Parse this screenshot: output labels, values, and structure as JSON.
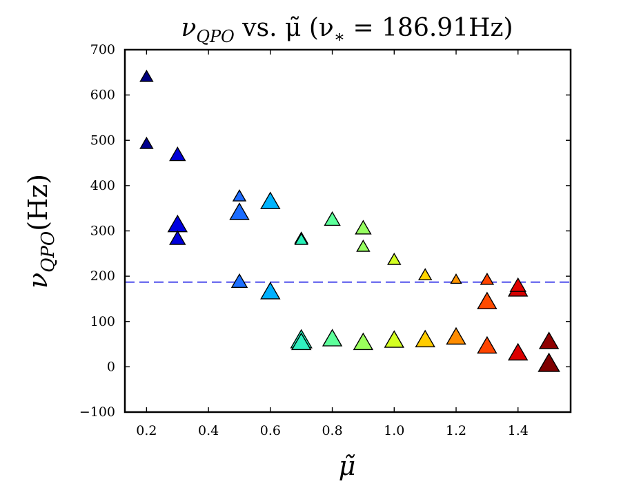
{
  "chart_data": {
    "type": "scatter",
    "marker": "triangle",
    "title": {
      "main": "ν",
      "sub": "QPO",
      "middle": " vs. μ̃ (ν",
      "star": "∗",
      "tail": " = 186.91Hz)"
    },
    "xlabel": "μ̃",
    "ylabel": {
      "main": "ν",
      "sub": "QPO",
      "unit": "(Hz)"
    },
    "xlim": [
      0.13,
      1.57
    ],
    "ylim": [
      -100,
      700
    ],
    "xticks": [
      0.2,
      0.4,
      0.6,
      0.8,
      1.0,
      1.2,
      1.4
    ],
    "xtick_labels": [
      "0.2",
      "0.4",
      "0.6",
      "0.8",
      "1.0",
      "1.2",
      "1.4"
    ],
    "yticks": [
      -100,
      0,
      100,
      200,
      300,
      400,
      500,
      600,
      700
    ],
    "ytick_labels": [
      "−100",
      "0",
      "100",
      "200",
      "300",
      "400",
      "500",
      "600",
      "700"
    ],
    "reference_line": {
      "y": 186.91,
      "style": "dashed",
      "color": "#1a1ae6"
    },
    "points": [
      {
        "x": 0.2,
        "y": 638,
        "size": "small",
        "color": "#00007f"
      },
      {
        "x": 0.2,
        "y": 490,
        "size": "small",
        "color": "#00008f"
      },
      {
        "x": 0.3,
        "y": 465,
        "size": "medium",
        "color": "#0000d6"
      },
      {
        "x": 0.3,
        "y": 310,
        "size": "large",
        "color": "#0000e0"
      },
      {
        "x": 0.3,
        "y": 280,
        "size": "medium",
        "color": "#0000dc"
      },
      {
        "x": 0.5,
        "y": 374,
        "size": "small",
        "color": "#1e6cff"
      },
      {
        "x": 0.5,
        "y": 337,
        "size": "large",
        "color": "#1a6cff"
      },
      {
        "x": 0.5,
        "y": 185,
        "size": "medium",
        "color": "#1e70ff"
      },
      {
        "x": 0.6,
        "y": 361,
        "size": "large",
        "color": "#00b4ff"
      },
      {
        "x": 0.6,
        "y": 162,
        "size": "large",
        "color": "#00b0ff"
      },
      {
        "x": 0.7,
        "y": 281,
        "size": "small",
        "color": "#1fe6b8"
      },
      {
        "x": 0.7,
        "y": 278,
        "size": "small",
        "color": "#28f0b8"
      },
      {
        "x": 0.7,
        "y": 55,
        "size": "xlarge",
        "color": "#29ffc6"
      },
      {
        "x": 0.7,
        "y": 50,
        "size": "large",
        "color": "#30f0c0"
      },
      {
        "x": 0.8,
        "y": 322,
        "size": "medium",
        "color": "#5cff9a"
      },
      {
        "x": 0.8,
        "y": 58,
        "size": "large",
        "color": "#5dff9a"
      },
      {
        "x": 0.9,
        "y": 303,
        "size": "medium",
        "color": "#96ff60"
      },
      {
        "x": 0.9,
        "y": 263,
        "size": "small",
        "color": "#96ff60"
      },
      {
        "x": 0.9,
        "y": 50,
        "size": "large",
        "color": "#9aff5c"
      },
      {
        "x": 1.0,
        "y": 234,
        "size": "small",
        "color": "#d4ff22"
      },
      {
        "x": 1.0,
        "y": 55,
        "size": "large",
        "color": "#d4ff22"
      },
      {
        "x": 1.1,
        "y": 200,
        "size": "small",
        "color": "#ffd600"
      },
      {
        "x": 1.1,
        "y": 56,
        "size": "large",
        "color": "#ffcc00"
      },
      {
        "x": 1.2,
        "y": 191,
        "size": "tiny",
        "color": "#ff9400"
      },
      {
        "x": 1.2,
        "y": 62,
        "size": "large",
        "color": "#ff8c00"
      },
      {
        "x": 1.3,
        "y": 190,
        "size": "small",
        "color": "#ff4400"
      },
      {
        "x": 1.3,
        "y": 140,
        "size": "large",
        "color": "#ff4a00"
      },
      {
        "x": 1.3,
        "y": 42,
        "size": "large",
        "color": "#ff4400"
      },
      {
        "x": 1.4,
        "y": 168,
        "size": "large",
        "color": "#d40000"
      },
      {
        "x": 1.4,
        "y": 176,
        "size": "medium",
        "color": "#e00000"
      },
      {
        "x": 1.4,
        "y": 27,
        "size": "large",
        "color": "#dc0000"
      },
      {
        "x": 1.5,
        "y": 52,
        "size": "large",
        "color": "#8f0000"
      },
      {
        "x": 1.5,
        "y": 3,
        "size": "xlarge",
        "color": "#7f0000"
      }
    ]
  }
}
